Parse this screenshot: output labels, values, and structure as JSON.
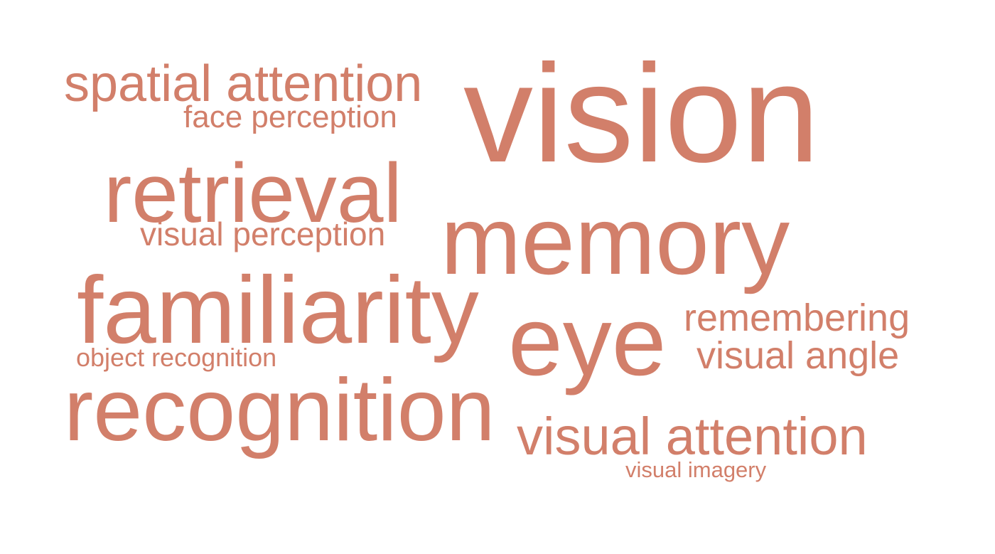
{
  "word_cloud": {
    "color": "#d27f6a",
    "words": [
      {
        "id": "vision",
        "text": "vision"
      },
      {
        "id": "memory",
        "text": "memory"
      },
      {
        "id": "familiarity",
        "text": "familiarity"
      },
      {
        "id": "recognition",
        "text": "recognition"
      },
      {
        "id": "retrieval",
        "text": "retrieval"
      },
      {
        "id": "eye",
        "text": "eye"
      },
      {
        "id": "spatial_attention",
        "text": "spatial attention"
      },
      {
        "id": "visual_attention",
        "text": "visual attention"
      },
      {
        "id": "remembering",
        "text": "remembering"
      },
      {
        "id": "visual_angle",
        "text": "visual angle"
      },
      {
        "id": "visual_perception",
        "text": "visual perception"
      },
      {
        "id": "face_perception",
        "text": "face perception"
      },
      {
        "id": "object_recognition",
        "text": "object recognition"
      },
      {
        "id": "visual_imagery",
        "text": "visual imagery"
      }
    ]
  }
}
